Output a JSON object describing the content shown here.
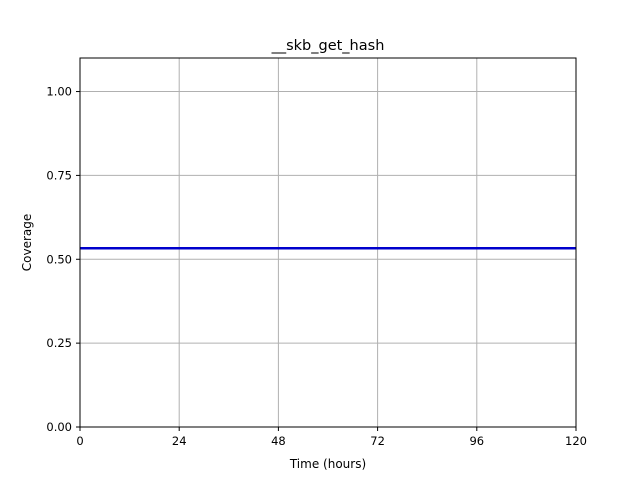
{
  "chart_data": {
    "type": "line",
    "title": "__skb_get_hash",
    "xlabel": "Time (hours)",
    "ylabel": "Coverage",
    "xlim": [
      0,
      120
    ],
    "ylim": [
      0.0,
      1.1
    ],
    "x_ticks": [
      0,
      24,
      48,
      72,
      96,
      120
    ],
    "x_tick_labels": [
      "0",
      "24",
      "48",
      "72",
      "96",
      "120"
    ],
    "y_ticks": [
      0.0,
      0.25,
      0.5,
      0.75,
      1.0
    ],
    "y_tick_labels": [
      "0.00",
      "0.25",
      "0.50",
      "0.75",
      "1.00"
    ],
    "grid": true,
    "series": [
      {
        "color": "#0000cc",
        "x": [
          0,
          120
        ],
        "y": [
          0.533,
          0.533
        ]
      }
    ]
  }
}
